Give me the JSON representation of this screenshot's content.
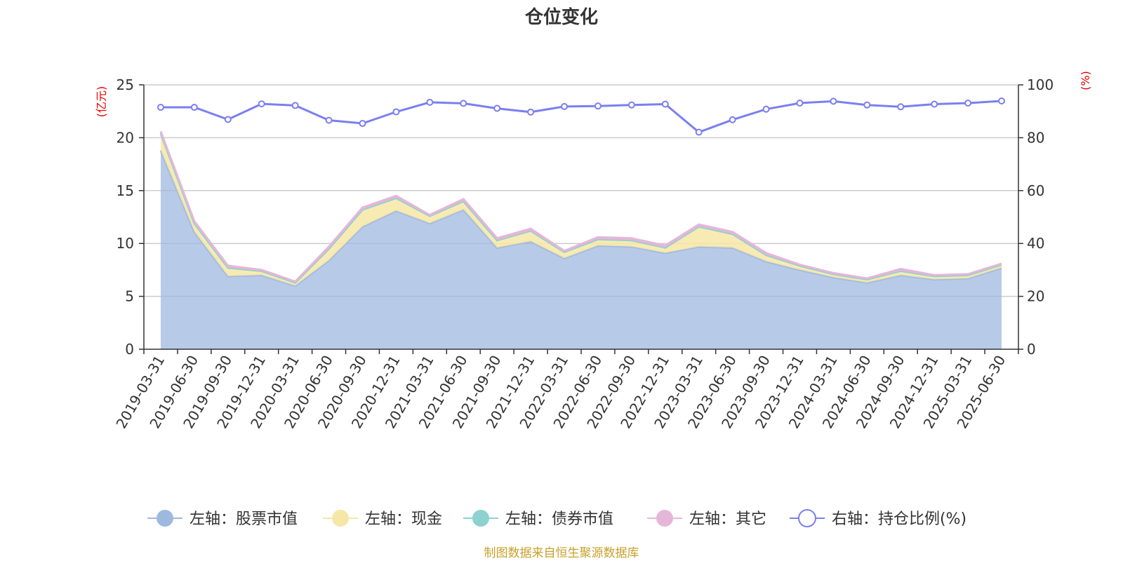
{
  "chart_data": {
    "type": "area",
    "title": "仓位变化",
    "y_left_unit": "(亿元)",
    "y_right_unit": "(%)",
    "y_left_lim": [
      0,
      25
    ],
    "y_left_ticks": [
      0,
      5,
      10,
      15,
      20,
      25
    ],
    "y_right_lim": [
      0,
      100
    ],
    "y_right_ticks": [
      0,
      20,
      40,
      60,
      80,
      100
    ],
    "categories": [
      "2019-03-31",
      "2019-06-30",
      "2019-09-30",
      "2019-12-31",
      "2020-03-31",
      "2020-06-30",
      "2020-09-30",
      "2020-12-31",
      "2021-03-31",
      "2021-06-30",
      "2021-09-30",
      "2021-12-31",
      "2022-03-31",
      "2022-06-30",
      "2022-09-30",
      "2022-12-31",
      "2023-03-31",
      "2023-06-30",
      "2023-09-30",
      "2023-12-31",
      "2024-03-31",
      "2024-06-30",
      "2024-09-30",
      "2024-12-31",
      "2025-03-31",
      "2025-06-30"
    ],
    "series": [
      {
        "name": "左轴：股票市值",
        "axis": "left",
        "color": "#9fb8e0",
        "values": [
          18.8,
          11.1,
          6.9,
          7.0,
          6.0,
          8.4,
          11.6,
          13.1,
          11.9,
          13.2,
          9.6,
          10.2,
          8.6,
          9.8,
          9.7,
          9.1,
          9.7,
          9.6,
          8.3,
          7.5,
          6.8,
          6.3,
          7.0,
          6.6,
          6.7,
          7.7
        ]
      },
      {
        "name": "左轴：现金",
        "axis": "left",
        "color": "#f6e7a6",
        "values": [
          1.6,
          0.8,
          0.8,
          0.4,
          0.3,
          1.1,
          1.6,
          1.2,
          0.7,
          0.8,
          0.7,
          1.0,
          0.6,
          0.6,
          0.6,
          0.5,
          1.9,
          1.3,
          0.6,
          0.4,
          0.3,
          0.3,
          0.4,
          0.3,
          0.3,
          0.3
        ]
      },
      {
        "name": "左轴：债券市值",
        "axis": "left",
        "color": "#8dd2d0",
        "values": [
          0,
          0,
          0,
          0,
          0,
          0,
          0,
          0,
          0,
          0,
          0,
          0,
          0,
          0,
          0,
          0,
          0,
          0,
          0,
          0,
          0,
          0,
          0,
          0,
          0,
          0
        ]
      },
      {
        "name": "左轴：其它",
        "axis": "left",
        "color": "#e6b6d8",
        "values": [
          0.2,
          0.2,
          0.2,
          0.1,
          0.1,
          0.2,
          0.2,
          0.2,
          0.1,
          0.2,
          0.2,
          0.2,
          0.1,
          0.2,
          0.2,
          0.2,
          0.2,
          0.2,
          0.2,
          0.1,
          0.1,
          0.1,
          0.2,
          0.1,
          0.1,
          0.1
        ]
      },
      {
        "name": "右轴：持仓比例(%)",
        "axis": "right",
        "color": "#7b7ff0",
        "values": [
          91.5,
          91.5,
          86.9,
          92.8,
          92.2,
          86.6,
          85.4,
          89.8,
          93.4,
          93.0,
          91.1,
          89.7,
          91.8,
          92.0,
          92.4,
          92.7,
          82.1,
          86.8,
          90.8,
          93.1,
          93.8,
          92.4,
          91.7,
          92.7,
          93.1,
          93.9
        ]
      }
    ],
    "legend_position": "bottom",
    "grid": true
  },
  "footer": {
    "source": "制图数据来自恒生聚源数据库"
  }
}
